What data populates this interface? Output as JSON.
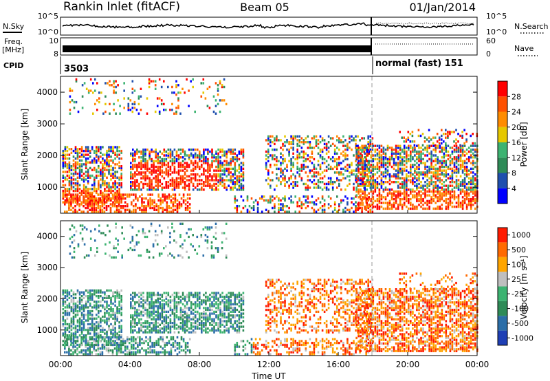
{
  "header": {
    "station": "Rankin Inlet (fitACF)",
    "beam": "Beam 05",
    "date": "01/Jan/2014"
  },
  "noise_panel": {
    "left_label": "N.Sky",
    "right_label": "N.Search",
    "right_ticks": [
      "10^5",
      "10^0"
    ],
    "left_ticks": [
      "10^5",
      "10^0"
    ]
  },
  "freq_panel": {
    "left_label_line1": "Freq.",
    "left_label_line2": "[MHz]",
    "left_ticks": [
      "10",
      "8"
    ],
    "right_label": "Nave",
    "right_ticks": [
      "60",
      "0"
    ]
  },
  "cpid": {
    "label": "CPID",
    "segment1": "3503",
    "segment2": "normal (fast) 151"
  },
  "x_axis": {
    "label": "Time UT",
    "ticks": [
      "00:00",
      "04:00",
      "08:00",
      "12:00",
      "16:00",
      "20:00",
      "00:00"
    ]
  },
  "chart_data": [
    {
      "type": "heatmap",
      "ylabel": "Slant Range [km]",
      "y_ticks": [
        "1000",
        "2000",
        "3000",
        "4000"
      ],
      "ylim": [
        180,
        4500
      ],
      "xlim_hours": [
        0,
        24
      ],
      "colorbar": {
        "label": "Power [dB]",
        "ticks": [
          "4",
          "8",
          "12",
          "16",
          "20",
          "24",
          "28"
        ],
        "colors": [
          "#0000ff",
          "#1f4fae",
          "#2e8b57",
          "#3cb371",
          "#e6c800",
          "#ff8c00",
          "#ff5000",
          "#ff0000"
        ]
      }
    },
    {
      "type": "heatmap",
      "ylabel": "Slant Range [km]",
      "y_ticks": [
        "1000",
        "2000",
        "3000",
        "4000"
      ],
      "ylim": [
        180,
        4500
      ],
      "xlim_hours": [
        0,
        24
      ],
      "colorbar": {
        "label": "Velocity [m s⁻¹]",
        "ticks": [
          "1000",
          "500",
          "100",
          "25",
          "-25",
          "-100",
          "-500",
          "-1000"
        ],
        "colors": [
          "#1f3fb5",
          "#2b6ea8",
          "#2e8b57",
          "#3cb371",
          "#bfbfbf",
          "#ffa500",
          "#ff6a00",
          "#ff1a00"
        ]
      }
    }
  ]
}
